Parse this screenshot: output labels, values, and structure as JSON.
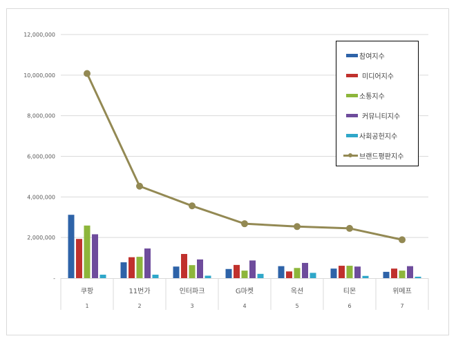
{
  "chart_data": {
    "type": "bar",
    "title": "",
    "xlabel": "",
    "ylabel": "",
    "ylim": [
      0,
      12000000
    ],
    "yticks": [
      "-",
      "2,000,000",
      "4,000,000",
      "6,000,000",
      "8,000,000",
      "10,000,000",
      "12,000,000"
    ],
    "categories": [
      "쿠팡",
      "11번가",
      "인터파크",
      "G마켓",
      "옥션",
      "티몬",
      "위메프"
    ],
    "category_index": [
      "1",
      "2",
      "3",
      "4",
      "5",
      "6",
      "7"
    ],
    "grid": true,
    "legend_position": "right-inside",
    "series": [
      {
        "name": "참여지수",
        "type": "bar",
        "color": "#2E63A8",
        "values": [
          3120000,
          780000,
          570000,
          450000,
          590000,
          470000,
          310000
        ]
      },
      {
        "name": "미디어지수",
        "type": "bar",
        "color": "#C0312D",
        "values": [
          1930000,
          1030000,
          1190000,
          650000,
          330000,
          610000,
          470000
        ]
      },
      {
        "name": "소통지수",
        "type": "bar",
        "color": "#8DB63B",
        "values": [
          2590000,
          1050000,
          640000,
          370000,
          500000,
          610000,
          370000
        ]
      },
      {
        "name": "커뮤니티지수",
        "type": "bar",
        "color": "#6E4C9C",
        "values": [
          2160000,
          1460000,
          920000,
          870000,
          750000,
          570000,
          590000
        ]
      },
      {
        "name": "사회공헌지수",
        "type": "bar",
        "color": "#2FA7C9",
        "values": [
          170000,
          170000,
          120000,
          210000,
          260000,
          110000,
          70000
        ]
      },
      {
        "name": "브랜드평판지수",
        "type": "line",
        "color": "#938953",
        "values": [
          10080000,
          4530000,
          3560000,
          2680000,
          2540000,
          2450000,
          1890000
        ]
      }
    ]
  }
}
